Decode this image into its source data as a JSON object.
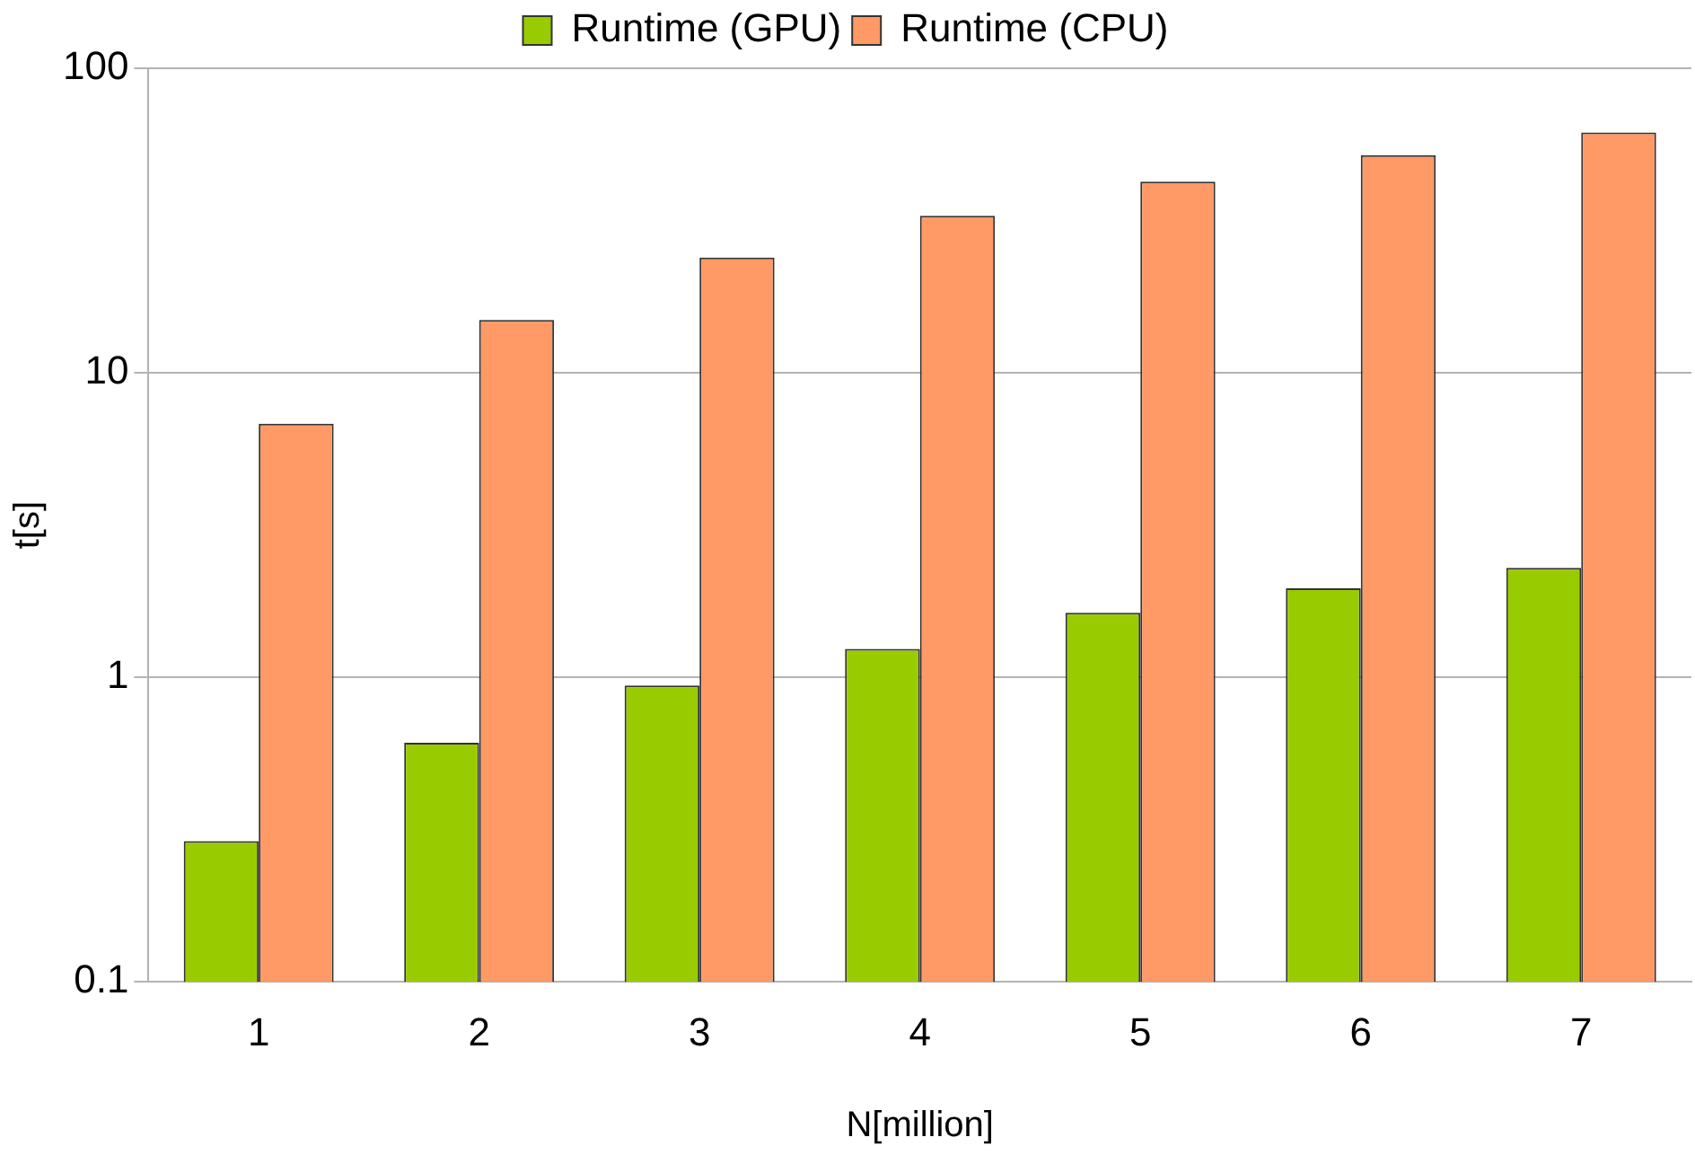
{
  "chart_data": {
    "type": "bar",
    "xlabel": "N[million]",
    "ylabel": "t[s]",
    "categories": [
      "1",
      "2",
      "3",
      "4",
      "5",
      "6",
      "7"
    ],
    "series": [
      {
        "name": "Runtime (GPU)",
        "color": "#99cc00",
        "values": [
          0.29,
          0.61,
          0.94,
          1.24,
          1.63,
          1.96,
          2.29
        ]
      },
      {
        "name": "Runtime (CPU)",
        "color": "#ff9966",
        "values": [
          6.8,
          14.9,
          23.9,
          32.8,
          42.4,
          51.8,
          61.5
        ]
      }
    ],
    "log": true,
    "ylim": [
      0.1,
      100
    ],
    "yticks": [
      0.1,
      1,
      10,
      100
    ],
    "grid": "y",
    "legend": "top"
  }
}
